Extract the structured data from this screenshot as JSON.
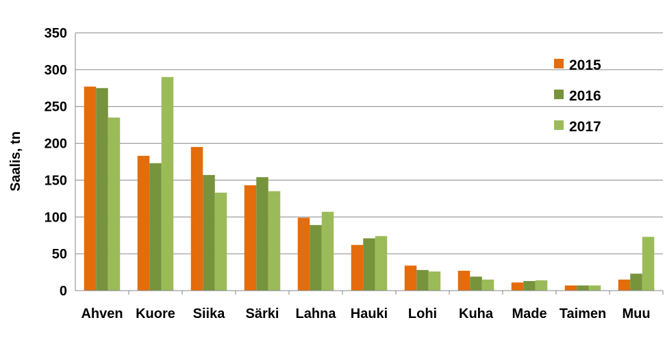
{
  "chart_data": {
    "type": "bar",
    "ylabel": "Saalis, tn",
    "xlabel": "",
    "ylim": [
      0,
      350
    ],
    "yticks": [
      0,
      50,
      100,
      150,
      200,
      250,
      300,
      350
    ],
    "grid": "horizontal",
    "legend_position": "top-right",
    "categories": [
      "Ahven",
      "Kuore",
      "Siika",
      "Särki",
      "Lahna",
      "Hauki",
      "Lohi",
      "Kuha",
      "Made",
      "Taimen",
      "Muu"
    ],
    "series": [
      {
        "name": "2015",
        "color": "#e46c0a",
        "values": [
          277,
          183,
          195,
          143,
          99,
          62,
          34,
          27,
          11,
          7,
          15
        ]
      },
      {
        "name": "2016",
        "color": "#77933c",
        "values": [
          275,
          173,
          157,
          154,
          89,
          71,
          28,
          19,
          13,
          7,
          23
        ]
      },
      {
        "name": "2017",
        "color": "#9bbb59",
        "values": [
          235,
          290,
          133,
          135,
          107,
          74,
          26,
          15,
          14,
          7,
          73
        ]
      }
    ]
  }
}
